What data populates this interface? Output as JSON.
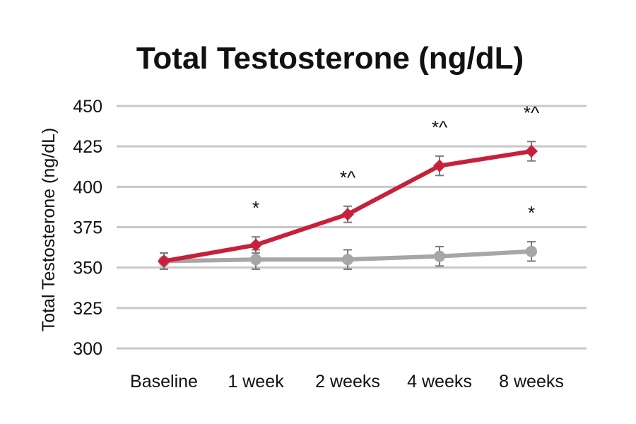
{
  "chart_data": {
    "type": "line",
    "title": "Total Testosterone (ng/dL)",
    "xlabel": "",
    "ylabel": "Total Testosterone (ng/dL)",
    "categories": [
      "Baseline",
      "1 week",
      "2 weeks",
      "4 weeks",
      "8 weeks"
    ],
    "ylim": [
      300,
      450
    ],
    "yticks": [
      300,
      325,
      350,
      375,
      400,
      425,
      450
    ],
    "grid": true,
    "series": [
      {
        "color": "#c8203a",
        "marker": "diamond",
        "values": [
          354,
          364,
          383,
          413,
          422
        ],
        "error": [
          5,
          5,
          5,
          6,
          6
        ],
        "annotations": [
          "",
          "*",
          "*^",
          "*^",
          "*^"
        ]
      },
      {
        "color": "#a6a6a6",
        "marker": "circle",
        "values": [
          354,
          355,
          355,
          357,
          360
        ],
        "error": [
          5,
          6,
          6,
          6,
          6
        ],
        "annotations": [
          "",
          "",
          "",
          "",
          "*"
        ]
      }
    ]
  }
}
